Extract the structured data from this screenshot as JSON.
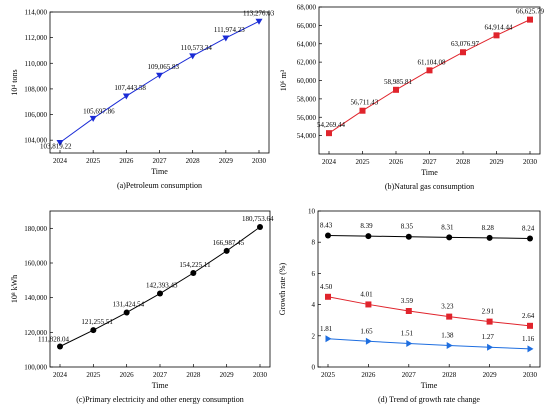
{
  "chart_data": [
    {
      "type": "line",
      "caption": "(a)Petroleum consumption",
      "xlabel": "Time",
      "ylabel": "10⁴ tons",
      "x": [
        2024,
        2025,
        2026,
        2027,
        2028,
        2029,
        2030
      ],
      "ylim": [
        103000,
        114000
      ],
      "yticks": [
        104000,
        106000,
        108000,
        110000,
        112000,
        114000
      ],
      "ytick_labels": [
        "104,000",
        "106,000",
        "108,000",
        "110,000",
        "112,000",
        "114,000"
      ],
      "series": [
        {
          "color": "#1a2bd6",
          "marker": "triangle-down",
          "values": [
            103819.22,
            105697.86,
            107443.58,
            109065.83,
            110573.34,
            111974.23,
            113276.03
          ],
          "labels": [
            "103,819.22",
            "105,697.86",
            "107,443.58",
            "109,065.83",
            "110,573.34",
            "111,974.23",
            "113,276.03"
          ]
        }
      ]
    },
    {
      "type": "line",
      "caption": "(b)Natural gas consumption",
      "xlabel": "Time",
      "ylabel": "10⁶ m³",
      "x": [
        2024,
        2025,
        2026,
        2027,
        2028,
        2029,
        2030
      ],
      "ylim": [
        52000,
        68000
      ],
      "yticks": [
        54000,
        56000,
        58000,
        60000,
        62000,
        64000,
        66000,
        68000
      ],
      "ytick_labels": [
        "54,000",
        "56,000",
        "58,000",
        "60,000",
        "62,000",
        "64,000",
        "66,000",
        "68,000"
      ],
      "series": [
        {
          "color": "#e0242c",
          "marker": "square",
          "values": [
            54269.44,
            56711.43,
            58985.81,
            61104.08,
            63076.97,
            64914.44,
            66625.79
          ],
          "labels": [
            "54,269.44",
            "56,711.43",
            "58,985.81",
            "61,104.08",
            "63,076.97",
            "64,914.44",
            "66,625.79"
          ]
        }
      ]
    },
    {
      "type": "line",
      "caption": "(c)Primary electricity and other energy consumption",
      "xlabel": "Time",
      "ylabel": "10⁸ kWh",
      "x": [
        2024,
        2025,
        2026,
        2027,
        2028,
        2029,
        2030
      ],
      "ylim": [
        100000,
        190000
      ],
      "yticks": [
        100000,
        120000,
        140000,
        160000,
        180000
      ],
      "ytick_labels": [
        "100,000",
        "120,000",
        "140,000",
        "160,000",
        "180,000"
      ],
      "series": [
        {
          "color": "#000000",
          "marker": "circle",
          "values": [
            111828.04,
            121255.51,
            131424.54,
            142393.43,
            154225.11,
            166987.45,
            180753.64
          ],
          "labels": [
            "111,828.04",
            "121,255.51",
            "131,424.54",
            "142,393.43",
            "154,225.11",
            "166,987.45",
            "180,753.64"
          ]
        }
      ]
    },
    {
      "type": "line",
      "caption": "(d) Trend of growth rate change",
      "xlabel": "Time",
      "ylabel": "Growth rate (%)",
      "x": [
        2025,
        2026,
        2027,
        2028,
        2029,
        2030
      ],
      "ylim": [
        0,
        10
      ],
      "yticks": [
        0,
        2,
        4,
        6,
        8,
        10
      ],
      "ytick_labels": [
        "0",
        "2",
        "4",
        "6",
        "8",
        "10"
      ],
      "series": [
        {
          "color": "#000000",
          "marker": "circle",
          "values": [
            8.43,
            8.39,
            8.35,
            8.31,
            8.28,
            8.24
          ],
          "labels": [
            "8.43",
            "8.39",
            "8.35",
            "8.31",
            "8.28",
            "8.24"
          ]
        },
        {
          "color": "#e0242c",
          "marker": "square",
          "values": [
            4.5,
            4.01,
            3.59,
            3.23,
            2.91,
            2.64
          ],
          "labels": [
            "4.50",
            "4.01",
            "3.59",
            "3.23",
            "2.91",
            "2.64"
          ]
        },
        {
          "color": "#1e6ee0",
          "marker": "triangle-right",
          "values": [
            1.81,
            1.65,
            1.51,
            1.38,
            1.27,
            1.16
          ],
          "labels": [
            "1.81",
            "1.65",
            "1.51",
            "1.38",
            "1.27",
            "1.16"
          ]
        }
      ]
    }
  ]
}
